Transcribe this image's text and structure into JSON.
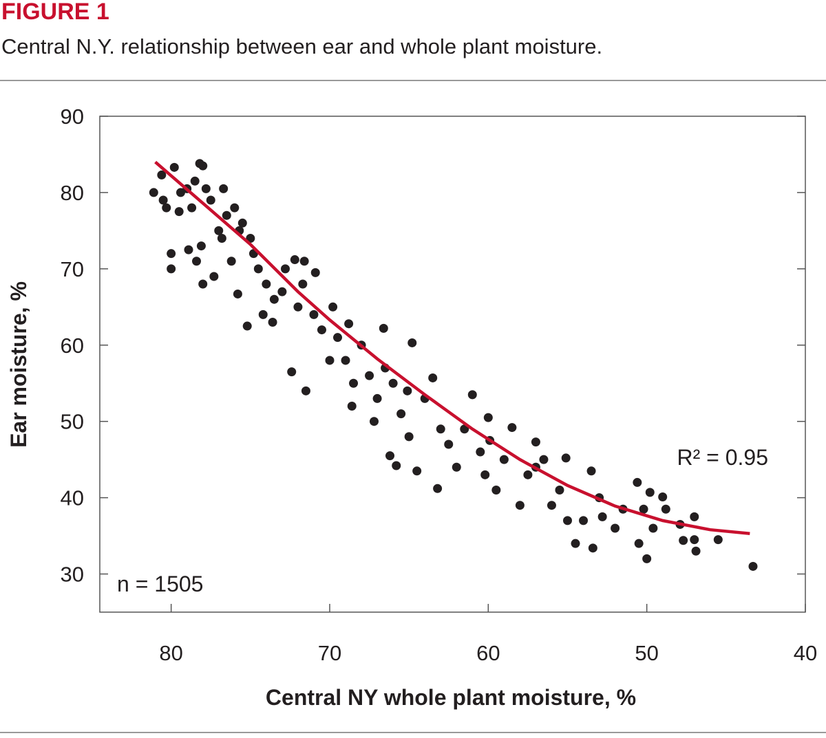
{
  "figure_label": "FIGURE 1",
  "chart_data": {
    "type": "scatter",
    "subtitle": "Central N.Y. relationship between ear and whole plant moisture.",
    "x_label": "Central NY whole plant moisture, %",
    "y_label": "Ear moisture, %",
    "annotations": [
      "R² = 0.95",
      "n = 1505"
    ],
    "xlim": [
      84.5,
      40
    ],
    "ylim": [
      25,
      90
    ],
    "xticks": [
      80,
      70,
      60,
      50,
      40
    ],
    "yticks": [
      30,
      40,
      50,
      60,
      70,
      80,
      90
    ],
    "series": [
      {
        "mode": "markers",
        "color": "#231f20",
        "x": [
          81.1,
          80.5,
          80.3,
          79.8,
          80.6,
          79.4,
          79,
          78.5,
          78.2,
          78,
          77.8,
          77.5,
          78.7,
          79.5,
          78.9,
          80,
          80,
          78.4,
          78.1,
          78,
          77.3,
          76.7,
          76.5,
          76,
          75.5,
          76.8,
          75.7,
          75,
          74.8,
          75.8,
          75.2,
          74.5,
          74,
          73.5,
          73,
          73.6,
          72.8,
          72.2,
          71.6,
          71.7,
          70.9,
          72,
          71,
          70.5,
          72.4,
          71.5,
          70,
          69.5,
          68.8,
          69,
          68,
          68.5,
          68.6,
          67.5,
          67,
          66.6,
          66,
          65.5,
          64.8,
          65.1,
          64,
          63.5,
          63,
          65,
          66.2,
          65.8,
          64.5,
          63.2,
          62,
          61,
          61.5,
          60.5,
          60,
          59.9,
          59,
          58.5,
          57.5,
          58,
          59.5,
          60.2,
          57,
          56.5,
          55.5,
          55.1,
          56,
          55,
          54.5,
          53.5,
          53,
          52.8,
          53.4,
          52,
          50.6,
          50.2,
          50.5,
          49.8,
          49.6,
          50,
          49,
          48.8,
          47.9,
          47.7,
          47,
          46.9,
          47,
          45.5,
          43.3,
          51.5,
          54,
          57,
          62.5,
          66.5,
          67.2,
          69.8,
          74.2,
          76.2,
          77
        ],
        "values": [
          80,
          79,
          78,
          83.3,
          82.3,
          80,
          80.5,
          81.5,
          83.8,
          83.5,
          80.5,
          79,
          78,
          77.5,
          72.5,
          72,
          70,
          71,
          73,
          68,
          69,
          80.5,
          77,
          78,
          76,
          74,
          75,
          74,
          72,
          66.7,
          62.5,
          70,
          68,
          66,
          67,
          63,
          70,
          71.2,
          71,
          68,
          69.5,
          65,
          64,
          62,
          56.5,
          54,
          58,
          61,
          62.8,
          58,
          60,
          55,
          52,
          56,
          53,
          62.2,
          55,
          51,
          60.3,
          54,
          53,
          55.7,
          49,
          48,
          45.5,
          44.2,
          43.5,
          41.2,
          44,
          53.5,
          49,
          46,
          50.5,
          47.5,
          45,
          49.2,
          43,
          39,
          41,
          43,
          47.3,
          45,
          41,
          45.2,
          39,
          37,
          34,
          43.5,
          40,
          37.5,
          33.4,
          36,
          42,
          38.5,
          34,
          40.7,
          36,
          32,
          40.1,
          38.5,
          36.5,
          34.4,
          37.5,
          33,
          34.5,
          34.5,
          31,
          38.5,
          37,
          44,
          47,
          57,
          50,
          65,
          64,
          71,
          75
        ]
      },
      {
        "mode": "line",
        "color": "#c8102e",
        "x": [
          81,
          78,
          75,
          72,
          70,
          67,
          64,
          61,
          58,
          55,
          52,
          49,
          46,
          43.5
        ],
        "values": [
          84,
          78.6,
          73.2,
          67,
          63.3,
          58.2,
          53.5,
          49,
          45,
          41.6,
          38.9,
          37,
          35.8,
          35.3
        ]
      }
    ]
  }
}
